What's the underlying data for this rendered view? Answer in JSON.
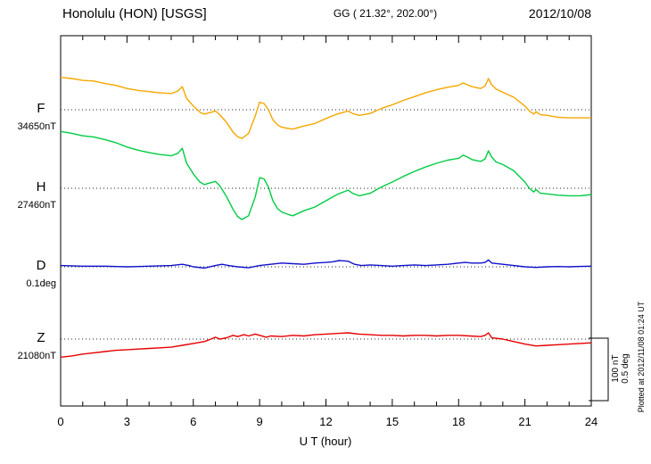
{
  "header": {
    "station": "Honolulu (HON)  [USGS]",
    "coords": "GG ( 21.32°, 202.00°)",
    "date": "2012/10/08"
  },
  "footer_note": "Plotted at 2012/11/08 01:24 UT",
  "scale_bar": {
    "nt": "100 nT",
    "deg": "0.5 deg"
  },
  "chart_data": {
    "type": "line",
    "title": "Honolulu (HON) [USGS] magnetogram",
    "xlabel": "U T (hour)",
    "xlim": [
      0,
      24
    ],
    "x_ticks": [
      0,
      3,
      6,
      9,
      12,
      15,
      18,
      21,
      24
    ],
    "x_minor_step": 1,
    "grid": "dotted horizontal baselines per trace",
    "legend_position": "left margin, one label per trace",
    "scale_reference": {
      "nT_per_bar": 100,
      "deg_per_bar": 0.5
    },
    "series": [
      {
        "id": "F",
        "label": "F",
        "baseline_label": "34650nT",
        "baseline_value": 34650,
        "unit": "nT",
        "color": "#F5A700",
        "points": [
          [
            0,
            52
          ],
          [
            0.5,
            50
          ],
          [
            1,
            47
          ],
          [
            1.5,
            46
          ],
          [
            2,
            42
          ],
          [
            2.5,
            39
          ],
          [
            3,
            34
          ],
          [
            3.5,
            31
          ],
          [
            4,
            29
          ],
          [
            4.5,
            27
          ],
          [
            5,
            26
          ],
          [
            5.3,
            30
          ],
          [
            5.5,
            37
          ],
          [
            5.7,
            18
          ],
          [
            6,
            6
          ],
          [
            6.3,
            -4
          ],
          [
            6.5,
            -7
          ],
          [
            6.8,
            -4
          ],
          [
            7,
            -2
          ],
          [
            7.2,
            -8
          ],
          [
            7.5,
            -20
          ],
          [
            7.8,
            -36
          ],
          [
            8,
            -43
          ],
          [
            8.2,
            -46
          ],
          [
            8.5,
            -38
          ],
          [
            8.8,
            -10
          ],
          [
            9,
            12
          ],
          [
            9.2,
            10
          ],
          [
            9.4,
            0
          ],
          [
            9.6,
            -16
          ],
          [
            9.8,
            -24
          ],
          [
            10,
            -28
          ],
          [
            10.3,
            -30
          ],
          [
            10.5,
            -31
          ],
          [
            11,
            -26
          ],
          [
            11.5,
            -22
          ],
          [
            12,
            -14
          ],
          [
            12.5,
            -7
          ],
          [
            13,
            -2
          ],
          [
            13.2,
            -6
          ],
          [
            13.5,
            -9
          ],
          [
            14,
            -6
          ],
          [
            14.5,
            2
          ],
          [
            15,
            8
          ],
          [
            15.5,
            15
          ],
          [
            16,
            21
          ],
          [
            16.5,
            27
          ],
          [
            17,
            32
          ],
          [
            17.5,
            36
          ],
          [
            18,
            39
          ],
          [
            18.2,
            43
          ],
          [
            18.4,
            40
          ],
          [
            18.6,
            37
          ],
          [
            19,
            34
          ],
          [
            19.2,
            38
          ],
          [
            19.35,
            50
          ],
          [
            19.5,
            40
          ],
          [
            19.7,
            33
          ],
          [
            20,
            28
          ],
          [
            20.5,
            20
          ],
          [
            21,
            6
          ],
          [
            21.2,
            -2
          ],
          [
            21.4,
            -7
          ],
          [
            21.5,
            -3
          ],
          [
            21.7,
            -8
          ],
          [
            22,
            -9
          ],
          [
            22.5,
            -12
          ],
          [
            23,
            -13
          ],
          [
            23.5,
            -13
          ],
          [
            24,
            -13
          ]
        ]
      },
      {
        "id": "H",
        "label": "H",
        "baseline_label": "27460nT",
        "baseline_value": 27460,
        "unit": "nT",
        "color": "#00CC44",
        "points": [
          [
            0,
            91
          ],
          [
            0.5,
            88
          ],
          [
            1,
            84
          ],
          [
            1.5,
            82
          ],
          [
            2,
            78
          ],
          [
            2.5,
            73
          ],
          [
            3,
            66
          ],
          [
            3.5,
            61
          ],
          [
            4,
            57
          ],
          [
            4.5,
            54
          ],
          [
            5,
            52
          ],
          [
            5.3,
            56
          ],
          [
            5.5,
            64
          ],
          [
            5.7,
            40
          ],
          [
            6,
            23
          ],
          [
            6.3,
            10
          ],
          [
            6.5,
            6
          ],
          [
            6.8,
            9
          ],
          [
            7,
            11
          ],
          [
            7.2,
            4
          ],
          [
            7.5,
            -13
          ],
          [
            7.8,
            -34
          ],
          [
            8,
            -45
          ],
          [
            8.2,
            -50
          ],
          [
            8.5,
            -44
          ],
          [
            8.8,
            -14
          ],
          [
            9,
            17
          ],
          [
            9.2,
            15
          ],
          [
            9.4,
            2
          ],
          [
            9.6,
            -20
          ],
          [
            9.8,
            -32
          ],
          [
            10,
            -38
          ],
          [
            10.3,
            -42
          ],
          [
            10.5,
            -44
          ],
          [
            11,
            -36
          ],
          [
            11.5,
            -30
          ],
          [
            12,
            -20
          ],
          [
            12.5,
            -10
          ],
          [
            13,
            -3
          ],
          [
            13.2,
            -8
          ],
          [
            13.5,
            -12
          ],
          [
            14,
            -8
          ],
          [
            14.5,
            2
          ],
          [
            15,
            10
          ],
          [
            15.5,
            19
          ],
          [
            16,
            27
          ],
          [
            16.5,
            34
          ],
          [
            17,
            40
          ],
          [
            17.5,
            45
          ],
          [
            18,
            48
          ],
          [
            18.2,
            53
          ],
          [
            18.4,
            50
          ],
          [
            18.6,
            46
          ],
          [
            19,
            43
          ],
          [
            19.2,
            47
          ],
          [
            19.35,
            60
          ],
          [
            19.5,
            50
          ],
          [
            19.7,
            42
          ],
          [
            20,
            38
          ],
          [
            20.5,
            28
          ],
          [
            21,
            10
          ],
          [
            21.2,
            0
          ],
          [
            21.4,
            -6
          ],
          [
            21.5,
            -2
          ],
          [
            21.7,
            -8
          ],
          [
            22,
            -9
          ],
          [
            22.5,
            -11
          ],
          [
            23,
            -12
          ],
          [
            23.5,
            -12
          ],
          [
            24,
            -10
          ]
        ]
      },
      {
        "id": "D",
        "label": "D",
        "baseline_label": "0.1deg",
        "baseline_value": 0.1,
        "unit": "deg",
        "color": "#1010CC",
        "points": [
          [
            0,
            0.01
          ],
          [
            0.5,
            0.008
          ],
          [
            1,
            0.005
          ],
          [
            1.5,
            0.005
          ],
          [
            2,
            0.005
          ],
          [
            2.5,
            0.002
          ],
          [
            3,
            0
          ],
          [
            3.5,
            0.002
          ],
          [
            4,
            0.005
          ],
          [
            4.5,
            0.008
          ],
          [
            5,
            0.01
          ],
          [
            5.5,
            0.02
          ],
          [
            5.8,
            0.01
          ],
          [
            6,
            0
          ],
          [
            6.5,
            -0.01
          ],
          [
            7,
            0.01
          ],
          [
            7.3,
            0.02
          ],
          [
            7.6,
            0.01
          ],
          [
            8,
            0
          ],
          [
            8.5,
            -0.008
          ],
          [
            9,
            0.01
          ],
          [
            9.5,
            0.02
          ],
          [
            10,
            0.03
          ],
          [
            10.5,
            0.025
          ],
          [
            11,
            0.02
          ],
          [
            11.5,
            0.03
          ],
          [
            12,
            0.035
          ],
          [
            12.3,
            0.04
          ],
          [
            12.6,
            0.05
          ],
          [
            13,
            0.045
          ],
          [
            13.3,
            0.02
          ],
          [
            13.6,
            0.01
          ],
          [
            14,
            0.015
          ],
          [
            14.5,
            0.01
          ],
          [
            15,
            0.005
          ],
          [
            15.5,
            0.01
          ],
          [
            16,
            0.015
          ],
          [
            16.5,
            0.01
          ],
          [
            17,
            0.015
          ],
          [
            17.5,
            0.02
          ],
          [
            18,
            0.03
          ],
          [
            18.3,
            0.035
          ],
          [
            18.6,
            0.03
          ],
          [
            19,
            0.03
          ],
          [
            19.2,
            0.035
          ],
          [
            19.35,
            0.055
          ],
          [
            19.5,
            0.03
          ],
          [
            20,
            0.02
          ],
          [
            20.5,
            0.01
          ],
          [
            21,
            0
          ],
          [
            21.5,
            -0.005
          ],
          [
            22,
            0
          ],
          [
            22.5,
            0.002
          ],
          [
            23,
            0
          ],
          [
            23.5,
            0.003
          ],
          [
            24,
            0.005
          ]
        ]
      },
      {
        "id": "Z",
        "label": "Z",
        "baseline_label": "21080nT",
        "baseline_value": 21080,
        "unit": "nT",
        "color": "#E60000",
        "points": [
          [
            0,
            -29
          ],
          [
            0.5,
            -27
          ],
          [
            1,
            -24
          ],
          [
            1.5,
            -22
          ],
          [
            2,
            -20
          ],
          [
            2.5,
            -18
          ],
          [
            3,
            -17
          ],
          [
            3.5,
            -16
          ],
          [
            4,
            -15
          ],
          [
            4.5,
            -14
          ],
          [
            5,
            -13
          ],
          [
            5.5,
            -10
          ],
          [
            6,
            -7
          ],
          [
            6.5,
            -4
          ],
          [
            6.8,
            0
          ],
          [
            7,
            3
          ],
          [
            7.2,
            0
          ],
          [
            7.5,
            2
          ],
          [
            7.8,
            6
          ],
          [
            8,
            4
          ],
          [
            8.3,
            7
          ],
          [
            8.5,
            5
          ],
          [
            8.8,
            8
          ],
          [
            9,
            6
          ],
          [
            9.3,
            3
          ],
          [
            9.5,
            5
          ],
          [
            10,
            4
          ],
          [
            10.5,
            6
          ],
          [
            11,
            5
          ],
          [
            11.5,
            7
          ],
          [
            12,
            8
          ],
          [
            12.5,
            9
          ],
          [
            13,
            10
          ],
          [
            13.5,
            8
          ],
          [
            14,
            7
          ],
          [
            14.5,
            6
          ],
          [
            15,
            6
          ],
          [
            15.5,
            5
          ],
          [
            16,
            6
          ],
          [
            16.5,
            6
          ],
          [
            17,
            5
          ],
          [
            17.5,
            6
          ],
          [
            18,
            6
          ],
          [
            18.5,
            5
          ],
          [
            19,
            4
          ],
          [
            19.2,
            6
          ],
          [
            19.35,
            10
          ],
          [
            19.5,
            2
          ],
          [
            20,
            0
          ],
          [
            20.5,
            -4
          ],
          [
            21,
            -8
          ],
          [
            21.5,
            -11
          ],
          [
            22,
            -10
          ],
          [
            22.5,
            -9
          ],
          [
            23,
            -8
          ],
          [
            23.5,
            -7
          ],
          [
            24,
            -6
          ]
        ]
      }
    ]
  }
}
